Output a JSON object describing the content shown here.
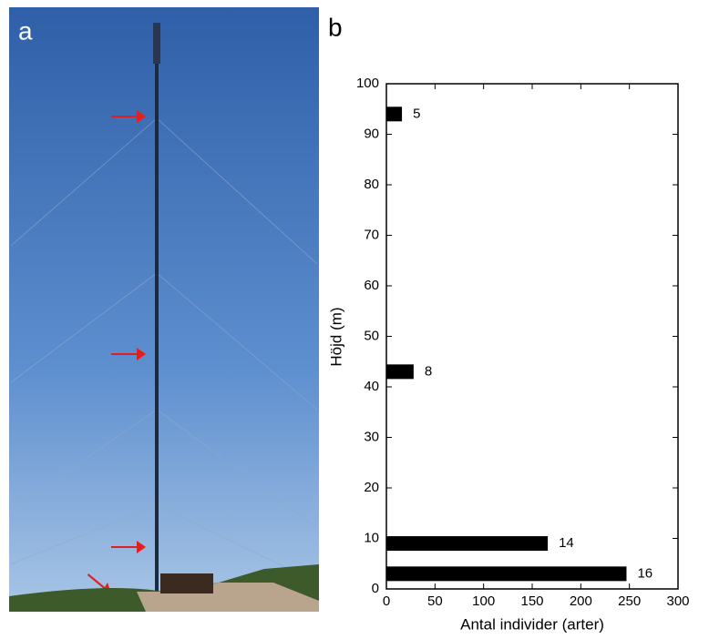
{
  "photo": {
    "panel_label": "a"
  },
  "chart_data": {
    "type": "hbar",
    "panel_label": "b",
    "x_label": "Antal individer (arter)",
    "y_label": "Höjd (m)",
    "heights": [
      3,
      9,
      43,
      94
    ],
    "values": [
      247,
      166,
      28,
      16
    ],
    "species": [
      16,
      14,
      8,
      5
    ],
    "color": "#000000",
    "xlim": [
      0,
      300
    ],
    "xticks": [
      0,
      50,
      100,
      150,
      200,
      250,
      300
    ],
    "ylim": [
      0,
      100
    ],
    "yticks": [
      0,
      10,
      20,
      30,
      40,
      50,
      60,
      70,
      80,
      90,
      100
    ]
  }
}
